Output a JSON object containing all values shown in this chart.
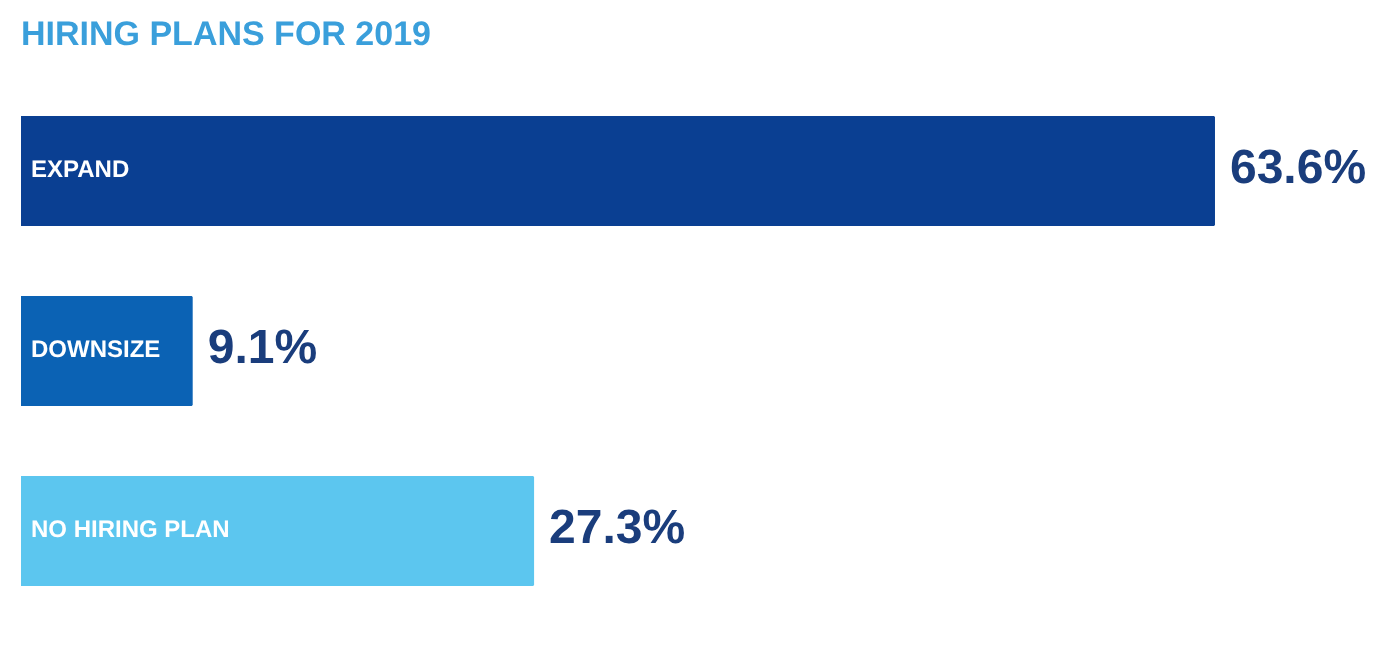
{
  "chart_data": {
    "type": "bar",
    "orientation": "horizontal",
    "title": "HIRING PLANS FOR 2019",
    "categories": [
      "EXPAND",
      "DOWNSIZE",
      "NO HIRING PLAN"
    ],
    "values": [
      63.6,
      9.1,
      27.3
    ],
    "colors": [
      "#0a3f92",
      "#0b62b4",
      "#5cc6ef"
    ],
    "value_labels": [
      "63.6%",
      "9.1%",
      "27.3%"
    ]
  }
}
